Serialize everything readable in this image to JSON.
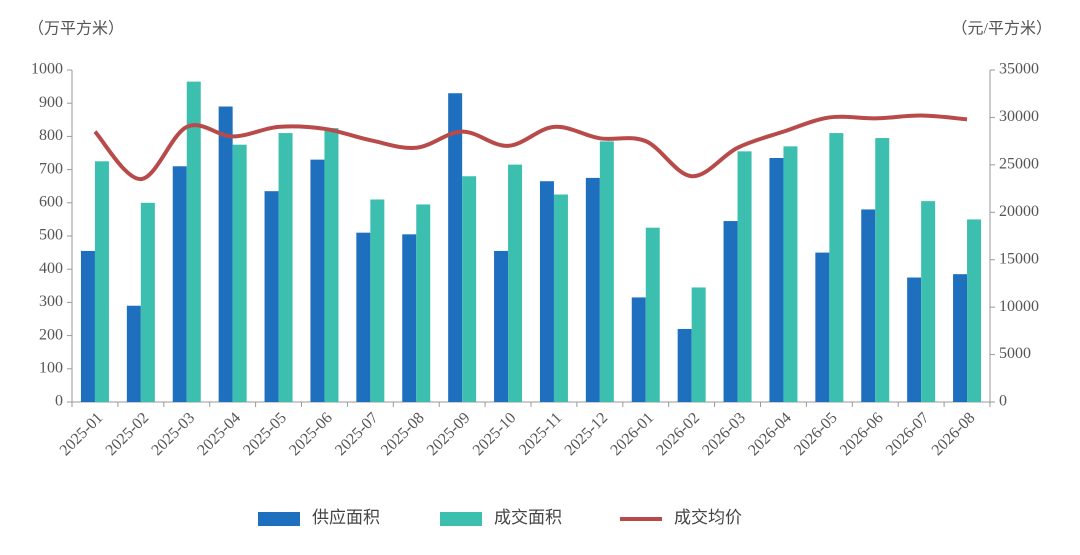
{
  "chart_data": {
    "type": "bar_line",
    "y_label": "（万平方米）",
    "y2_label": "（元/平方米）",
    "categories": [
      "2025-01",
      "2025-02",
      "2025-03",
      "2025-04",
      "2025-05",
      "2025-06",
      "2025-07",
      "2025-08",
      "2025-09",
      "2025-10",
      "2025-11",
      "2025-12",
      "2026-01",
      "2026-02",
      "2026-03",
      "2026-04",
      "2026-05",
      "2026-06",
      "2026-07",
      "2026-08"
    ],
    "series": [
      {
        "name": "供应面积",
        "type": "bar",
        "color": "#1f6fbf",
        "values": [
          455,
          290,
          710,
          890,
          635,
          730,
          510,
          505,
          930,
          455,
          665,
          675,
          315,
          220,
          545,
          735,
          450,
          580,
          375,
          385
        ]
      },
      {
        "name": "成交面积",
        "type": "bar",
        "color": "#3cbfae",
        "values": [
          725,
          600,
          965,
          775,
          810,
          825,
          610,
          595,
          680,
          715,
          625,
          785,
          525,
          345,
          755,
          770,
          810,
          795,
          605,
          550
        ]
      },
      {
        "name": "成交均价",
        "type": "line",
        "axis": "y2",
        "color": "#b84a4a",
        "values": [
          28500,
          23500,
          29000,
          28000,
          29000,
          28800,
          27600,
          26800,
          28500,
          27000,
          29000,
          27800,
          27500,
          23800,
          26800,
          28500,
          30000,
          29900,
          30200,
          29800
        ]
      }
    ],
    "ylim": [
      0,
      1000
    ],
    "yticks": [
      0,
      100,
      200,
      300,
      400,
      500,
      600,
      700,
      800,
      900,
      1000
    ],
    "y2lim": [
      0,
      35000
    ],
    "y2ticks": [
      0,
      5000,
      10000,
      15000,
      20000,
      25000,
      30000,
      35000
    ],
    "legend": "bottom"
  }
}
